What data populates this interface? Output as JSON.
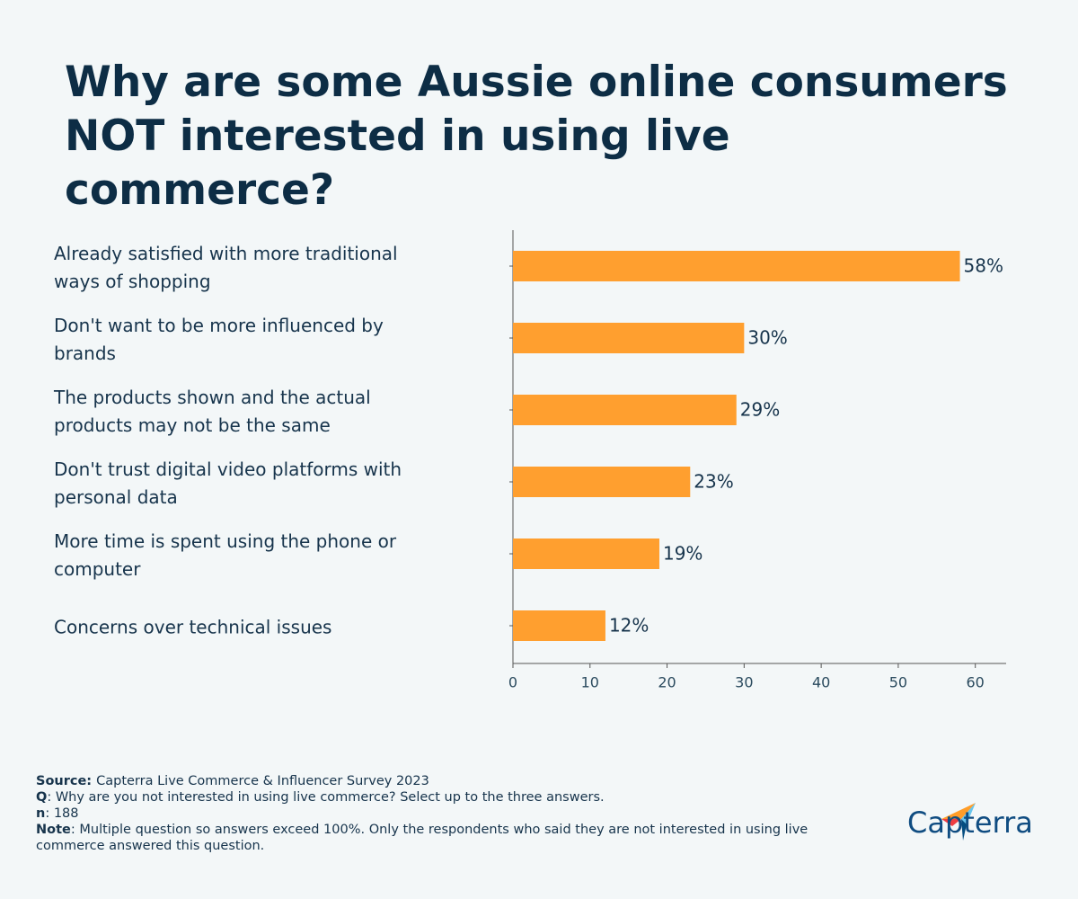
{
  "chart_data": {
    "type": "bar",
    "orientation": "horizontal",
    "title": "Why are some Aussie online consumers NOT interested in using live commerce?",
    "categories": [
      "Already satisfied with more traditional ways of shopping",
      "Don't want to be more influenced by brands",
      "The products shown and the actual products may not be the same",
      "Don't trust digital video platforms with personal data",
      "More time is spent using the phone or computer",
      "Concerns over technical issues"
    ],
    "values": [
      58,
      30,
      29,
      23,
      19,
      12
    ],
    "value_labels": [
      "58%",
      "30%",
      "29%",
      "23%",
      "19%",
      "12%"
    ],
    "color": "#ff9f2f",
    "xlim": [
      0,
      64
    ],
    "xticks": [
      0,
      10,
      20,
      30,
      40,
      50,
      60
    ],
    "grid": false
  },
  "footer": [
    {
      "label": "Source:",
      "text": "Capterra Live Commerce & Influencer Survey 2023"
    },
    {
      "label": "Q",
      "text": ": Why are you not interested in using live commerce? Select up to the three answers."
    },
    {
      "label": "n",
      "text": ": 188"
    },
    {
      "label": "Note",
      "text": ": Multiple question so answers exceed 100%. Only the respondents who said they are not interested in using live commerce answered this question."
    }
  ],
  "logo": "Capterra"
}
